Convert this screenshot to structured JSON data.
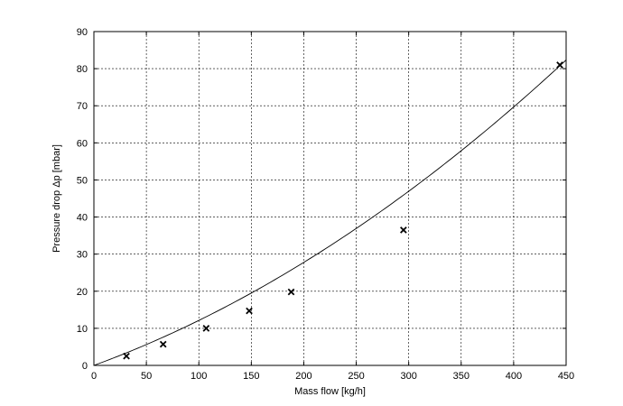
{
  "chart_data": {
    "type": "scatter",
    "xlabel": "Mass flow  [kg/h]",
    "ylabel": "Pressure drop Δp  [mbar]",
    "xlim": [
      0,
      450
    ],
    "ylim": [
      0,
      90
    ],
    "x_ticks": [
      0,
      50,
      100,
      150,
      200,
      250,
      300,
      350,
      400,
      450
    ],
    "y_ticks": [
      0,
      10,
      20,
      30,
      40,
      50,
      60,
      70,
      80,
      90
    ],
    "grid": true,
    "series": [
      {
        "marker": "x",
        "points": [
          {
            "x": 31,
            "y": 2.5
          },
          {
            "x": 66,
            "y": 5.7
          },
          {
            "x": 107,
            "y": 10
          },
          {
            "x": 148,
            "y": 14.7
          },
          {
            "x": 188,
            "y": 19.8
          },
          {
            "x": 295,
            "y": 36.5
          },
          {
            "x": 444,
            "y": 81
          }
        ]
      },
      {
        "style": "line",
        "fit": {
          "a": 0.0001764,
          "b": 0.1036
        }
      }
    ]
  }
}
